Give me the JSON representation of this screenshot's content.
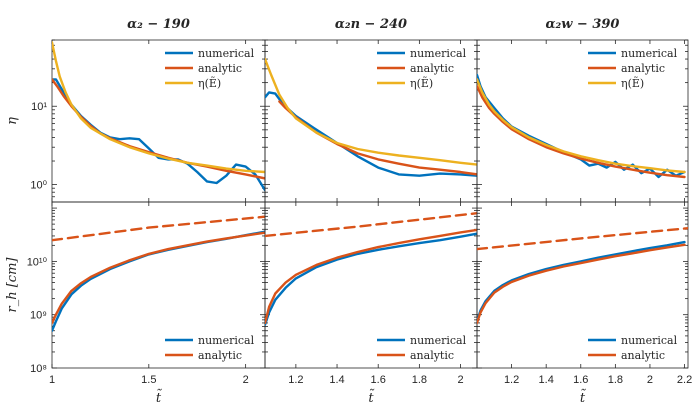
{
  "chart_data": [
    {
      "type": "line",
      "panel": "top-left",
      "title": "α₂ − 190",
      "ylabel": "η",
      "xlim": [
        1.0,
        2.1
      ],
      "ylim": [
        0.6,
        70
      ],
      "yscale": "log",
      "xticks": [
        1,
        1.5,
        2
      ],
      "xtick_labels": [
        "1",
        "1.5",
        "2"
      ],
      "yticks": [
        1,
        10
      ],
      "ytick_labels": [
        "10⁰",
        "10¹"
      ],
      "legend": [
        "numerical",
        "analytic",
        "η(Ẽ)"
      ],
      "series": [
        {
          "name": "numerical",
          "color": "#0072BD",
          "dash": false,
          "x": [
            1.0,
            1.02,
            1.06,
            1.1,
            1.15,
            1.2,
            1.25,
            1.3,
            1.35,
            1.4,
            1.45,
            1.5,
            1.55,
            1.6,
            1.65,
            1.7,
            1.75,
            1.8,
            1.85,
            1.9,
            1.95,
            2.0,
            2.05,
            2.1
          ],
          "y": [
            22,
            22,
            15,
            10.5,
            7.5,
            5.8,
            4.6,
            4.0,
            3.8,
            3.9,
            3.8,
            2.9,
            2.2,
            2.1,
            2.1,
            1.85,
            1.45,
            1.1,
            1.05,
            1.3,
            1.8,
            1.7,
            1.35,
            0.85
          ]
        },
        {
          "name": "analytic",
          "color": "#D95319",
          "dash": false,
          "x": [
            1.0,
            1.03,
            1.06,
            1.1,
            1.15,
            1.2,
            1.25,
            1.3,
            1.4,
            1.5,
            1.6,
            1.7,
            1.8,
            1.9,
            2.0,
            2.1
          ],
          "y": [
            22,
            17.5,
            13.5,
            10,
            7.3,
            5.6,
            4.5,
            3.9,
            3.1,
            2.6,
            2.2,
            1.9,
            1.7,
            1.5,
            1.35,
            1.2
          ]
        },
        {
          "name": "η(Ẽ)",
          "color": "#EDB120",
          "dash": false,
          "x": [
            1.0,
            1.02,
            1.04,
            1.07,
            1.1,
            1.15,
            1.2,
            1.3,
            1.4,
            1.5,
            1.6,
            1.7,
            1.8,
            1.9,
            2.0,
            2.1
          ],
          "y": [
            65,
            38,
            24,
            15,
            10.5,
            7,
            5.3,
            3.8,
            3.0,
            2.5,
            2.15,
            1.9,
            1.75,
            1.6,
            1.5,
            1.45
          ]
        }
      ]
    },
    {
      "type": "line",
      "panel": "top-middle",
      "title": "α₂n − 240",
      "xlim": [
        1.05,
        2.08
      ],
      "ylim": [
        0.6,
        70
      ],
      "yscale": "log",
      "xticks": [
        1.2,
        1.4,
        1.6,
        1.8,
        2
      ],
      "xtick_labels": [
        "1.2",
        "1.4",
        "1.6",
        "1.8",
        "2"
      ],
      "legend": [
        "numerical",
        "analytic",
        "η(Ẽ)"
      ],
      "series": [
        {
          "name": "numerical",
          "color": "#0072BD",
          "dash": false,
          "x": [
            1.05,
            1.07,
            1.1,
            1.14,
            1.2,
            1.3,
            1.4,
            1.5,
            1.6,
            1.7,
            1.8,
            1.9,
            2.0,
            2.08
          ],
          "y": [
            13,
            15,
            14.5,
            10.5,
            7.5,
            5.0,
            3.4,
            2.3,
            1.65,
            1.35,
            1.3,
            1.38,
            1.35,
            1.3
          ]
        },
        {
          "name": "analytic",
          "color": "#D95319",
          "dash": false,
          "x": [
            1.12,
            1.15,
            1.2,
            1.3,
            1.4,
            1.5,
            1.6,
            1.7,
            1.8,
            1.9,
            2.0,
            2.08
          ],
          "y": [
            11.5,
            9.5,
            7.2,
            4.6,
            3.3,
            2.5,
            2.1,
            1.85,
            1.65,
            1.55,
            1.45,
            1.35
          ]
        },
        {
          "name": "η(Ẽ)",
          "color": "#EDB120",
          "dash": false,
          "x": [
            1.05,
            1.08,
            1.12,
            1.16,
            1.2,
            1.3,
            1.4,
            1.5,
            1.6,
            1.7,
            1.8,
            1.9,
            2.0,
            2.08
          ],
          "y": [
            40,
            25,
            14,
            9.5,
            7.0,
            4.6,
            3.4,
            2.85,
            2.55,
            2.35,
            2.2,
            2.05,
            1.9,
            1.8
          ]
        }
      ]
    },
    {
      "type": "line",
      "panel": "top-right",
      "title": "α₂w − 390",
      "xlim": [
        1.0,
        2.22
      ],
      "ylim": [
        0.6,
        70
      ],
      "yscale": "log",
      "xticks": [
        1.2,
        1.4,
        1.6,
        1.8,
        2,
        2.2
      ],
      "xtick_labels": [
        "1.2",
        "1.4",
        "1.6",
        "1.8",
        "2",
        "2.2"
      ],
      "legend": [
        "numerical",
        "analytic",
        "η(Ẽ)"
      ],
      "series": [
        {
          "name": "numerical",
          "color": "#0072BD",
          "dash": false,
          "x": [
            1.0,
            1.02,
            1.05,
            1.1,
            1.15,
            1.2,
            1.3,
            1.4,
            1.5,
            1.6,
            1.65,
            1.7,
            1.75,
            1.8,
            1.85,
            1.9,
            1.95,
            2.0,
            2.05,
            2.1,
            2.15,
            2.2
          ],
          "y": [
            25,
            18,
            13,
            9.5,
            7.0,
            5.5,
            4.2,
            3.3,
            2.6,
            2.1,
            1.75,
            1.85,
            1.65,
            1.95,
            1.55,
            1.8,
            1.4,
            1.6,
            1.25,
            1.55,
            1.3,
            1.45
          ]
        },
        {
          "name": "analytic",
          "color": "#D95319",
          "dash": false,
          "x": [
            1.0,
            1.03,
            1.07,
            1.1,
            1.15,
            1.2,
            1.3,
            1.4,
            1.5,
            1.6,
            1.7,
            1.8,
            1.9,
            2.0,
            2.1,
            2.2
          ],
          "y": [
            18,
            13,
            9.5,
            8,
            6.3,
            5.1,
            3.8,
            3.0,
            2.5,
            2.15,
            1.9,
            1.7,
            1.55,
            1.42,
            1.32,
            1.25
          ]
        },
        {
          "name": "η(Ẽ)",
          "color": "#EDB120",
          "dash": false,
          "x": [
            1.0,
            1.03,
            1.07,
            1.1,
            1.15,
            1.2,
            1.3,
            1.4,
            1.5,
            1.6,
            1.7,
            1.8,
            1.9,
            2.0,
            2.1,
            2.2
          ],
          "y": [
            22,
            15,
            10.5,
            8.6,
            6.7,
            5.4,
            4.0,
            3.2,
            2.65,
            2.3,
            2.05,
            1.85,
            1.72,
            1.62,
            1.52,
            1.45
          ]
        }
      ]
    },
    {
      "type": "line",
      "panel": "bottom-left",
      "ylabel": "r_h [cm]",
      "xlabel": "t̃",
      "xlim": [
        1.0,
        2.1
      ],
      "ylim": [
        100000000.0,
        130000000000.0
      ],
      "yscale": "log",
      "xticks": [
        1,
        1.5,
        2
      ],
      "xtick_labels": [
        "1",
        "1.5",
        "2"
      ],
      "yticks": [
        100000000.0,
        1000000000.0,
        10000000000.0
      ],
      "ytick_labels": [
        "10⁸",
        "10⁹",
        "10¹⁰"
      ],
      "legend": [
        "numerical",
        "analytic"
      ],
      "series": [
        {
          "name": "numerical",
          "color": "#0072BD",
          "dash": false,
          "x": [
            1.0,
            1.02,
            1.05,
            1.1,
            1.15,
            1.2,
            1.3,
            1.4,
            1.5,
            1.6,
            1.7,
            1.8,
            1.9,
            2.0,
            2.1
          ],
          "y": [
            500000000.0,
            750000000.0,
            1300000000.0,
            2400000000.0,
            3500000000.0,
            4700000000.0,
            7200000000.0,
            10000000000.0,
            13500000000.0,
            16500000000.0,
            19500000000.0,
            23000000000.0,
            26500000000.0,
            31000000000.0,
            36000000000.0
          ]
        },
        {
          "name": "analytic",
          "color": "#D95319",
          "dash": false,
          "x": [
            1.0,
            1.02,
            1.05,
            1.1,
            1.15,
            1.2,
            1.3,
            1.4,
            1.5,
            1.6,
            1.7,
            1.8,
            1.9,
            2.0,
            2.1
          ],
          "y": [
            700000000.0,
            1000000000.0,
            1600000000.0,
            2800000000.0,
            3900000000.0,
            5100000000.0,
            7600000000.0,
            10500000000.0,
            13800000000.0,
            17000000000.0,
            20000000000.0,
            23500000000.0,
            27000000000.0,
            30500000000.0,
            34500000000.0
          ]
        },
        {
          "name": "",
          "color": "#D95319",
          "dash": true,
          "x": [
            1.0,
            1.5,
            2.1
          ],
          "y": [
            25000000000.0,
            43000000000.0,
            69000000000.0
          ]
        }
      ]
    },
    {
      "type": "line",
      "panel": "bottom-middle",
      "xlabel": "t̃",
      "xlim": [
        1.05,
        2.08
      ],
      "ylim": [
        100000000.0,
        130000000000.0
      ],
      "yscale": "log",
      "xticks": [
        1.2,
        1.4,
        1.6,
        1.8,
        2
      ],
      "xtick_labels": [
        "1.2",
        "1.4",
        "1.6",
        "1.8",
        "2"
      ],
      "legend": [
        "numerical",
        "analytic"
      ],
      "series": [
        {
          "name": "numerical",
          "color": "#0072BD",
          "dash": false,
          "x": [
            1.05,
            1.07,
            1.1,
            1.15,
            1.2,
            1.3,
            1.4,
            1.5,
            1.6,
            1.7,
            1.8,
            1.9,
            2.0,
            2.08
          ],
          "y": [
            650000000.0,
            1100000000.0,
            1900000000.0,
            3200000000.0,
            4800000000.0,
            7800000000.0,
            10800000000.0,
            13800000000.0,
            16500000000.0,
            19200000000.0,
            22000000000.0,
            25000000000.0,
            29000000000.0,
            33000000000.0
          ]
        },
        {
          "name": "analytic",
          "color": "#D95319",
          "dash": false,
          "x": [
            1.05,
            1.07,
            1.1,
            1.15,
            1.2,
            1.3,
            1.4,
            1.5,
            1.6,
            1.7,
            1.8,
            1.9,
            2.0,
            2.08
          ],
          "y": [
            700000000.0,
            1400000000.0,
            2500000000.0,
            4000000000.0,
            5600000000.0,
            8600000000.0,
            11700000000.0,
            15000000000.0,
            18500000000.0,
            22000000000.0,
            26000000000.0,
            30000000000.0,
            35000000000.0,
            39000000000.0
          ]
        },
        {
          "name": "",
          "color": "#D95319",
          "dash": true,
          "x": [
            1.05,
            1.5,
            2.08
          ],
          "y": [
            30000000000.0,
            45000000000.0,
            80000000000.0
          ]
        }
      ]
    },
    {
      "type": "line",
      "panel": "bottom-right",
      "xlabel": "t̃",
      "xlim": [
        1.0,
        2.22
      ],
      "ylim": [
        100000000.0,
        130000000000.0
      ],
      "yscale": "log",
      "xticks": [
        1.2,
        1.4,
        1.6,
        1.8,
        2,
        2.2
      ],
      "xtick_labels": [
        "1.2",
        "1.4",
        "1.6",
        "1.8",
        "2",
        "2.2"
      ],
      "legend": [
        "numerical",
        "analytic"
      ],
      "series": [
        {
          "name": "numerical",
          "color": "#0072BD",
          "dash": false,
          "x": [
            1.0,
            1.02,
            1.05,
            1.1,
            1.15,
            1.2,
            1.3,
            1.4,
            1.5,
            1.6,
            1.7,
            1.8,
            1.9,
            2.0,
            2.1,
            2.2
          ],
          "y": [
            750000000.0,
            1200000000.0,
            1800000000.0,
            2800000000.0,
            3600000000.0,
            4400000000.0,
            5800000000.0,
            7200000000.0,
            8600000000.0,
            10000000000.0,
            11700000000.0,
            13500000000.0,
            15500000000.0,
            17800000000.0,
            20000000000.0,
            23000000000.0
          ]
        },
        {
          "name": "analytic",
          "color": "#D95319",
          "dash": false,
          "x": [
            1.0,
            1.02,
            1.05,
            1.1,
            1.15,
            1.2,
            1.3,
            1.4,
            1.5,
            1.6,
            1.7,
            1.8,
            1.9,
            2.0,
            2.1,
            2.2
          ],
          "y": [
            700000000.0,
            1100000000.0,
            1650000000.0,
            2600000000.0,
            3350000000.0,
            4100000000.0,
            5400000000.0,
            6700000000.0,
            8000000000.0,
            9300000000.0,
            10800000000.0,
            12500000000.0,
            14200000000.0,
            16200000000.0,
            18300000000.0,
            20500000000.0
          ]
        },
        {
          "name": "",
          "color": "#D95319",
          "dash": true,
          "x": [
            1.0,
            1.6,
            2.22
          ],
          "y": [
            17000000000.0,
            27000000000.0,
            42000000000.0
          ]
        }
      ]
    }
  ]
}
